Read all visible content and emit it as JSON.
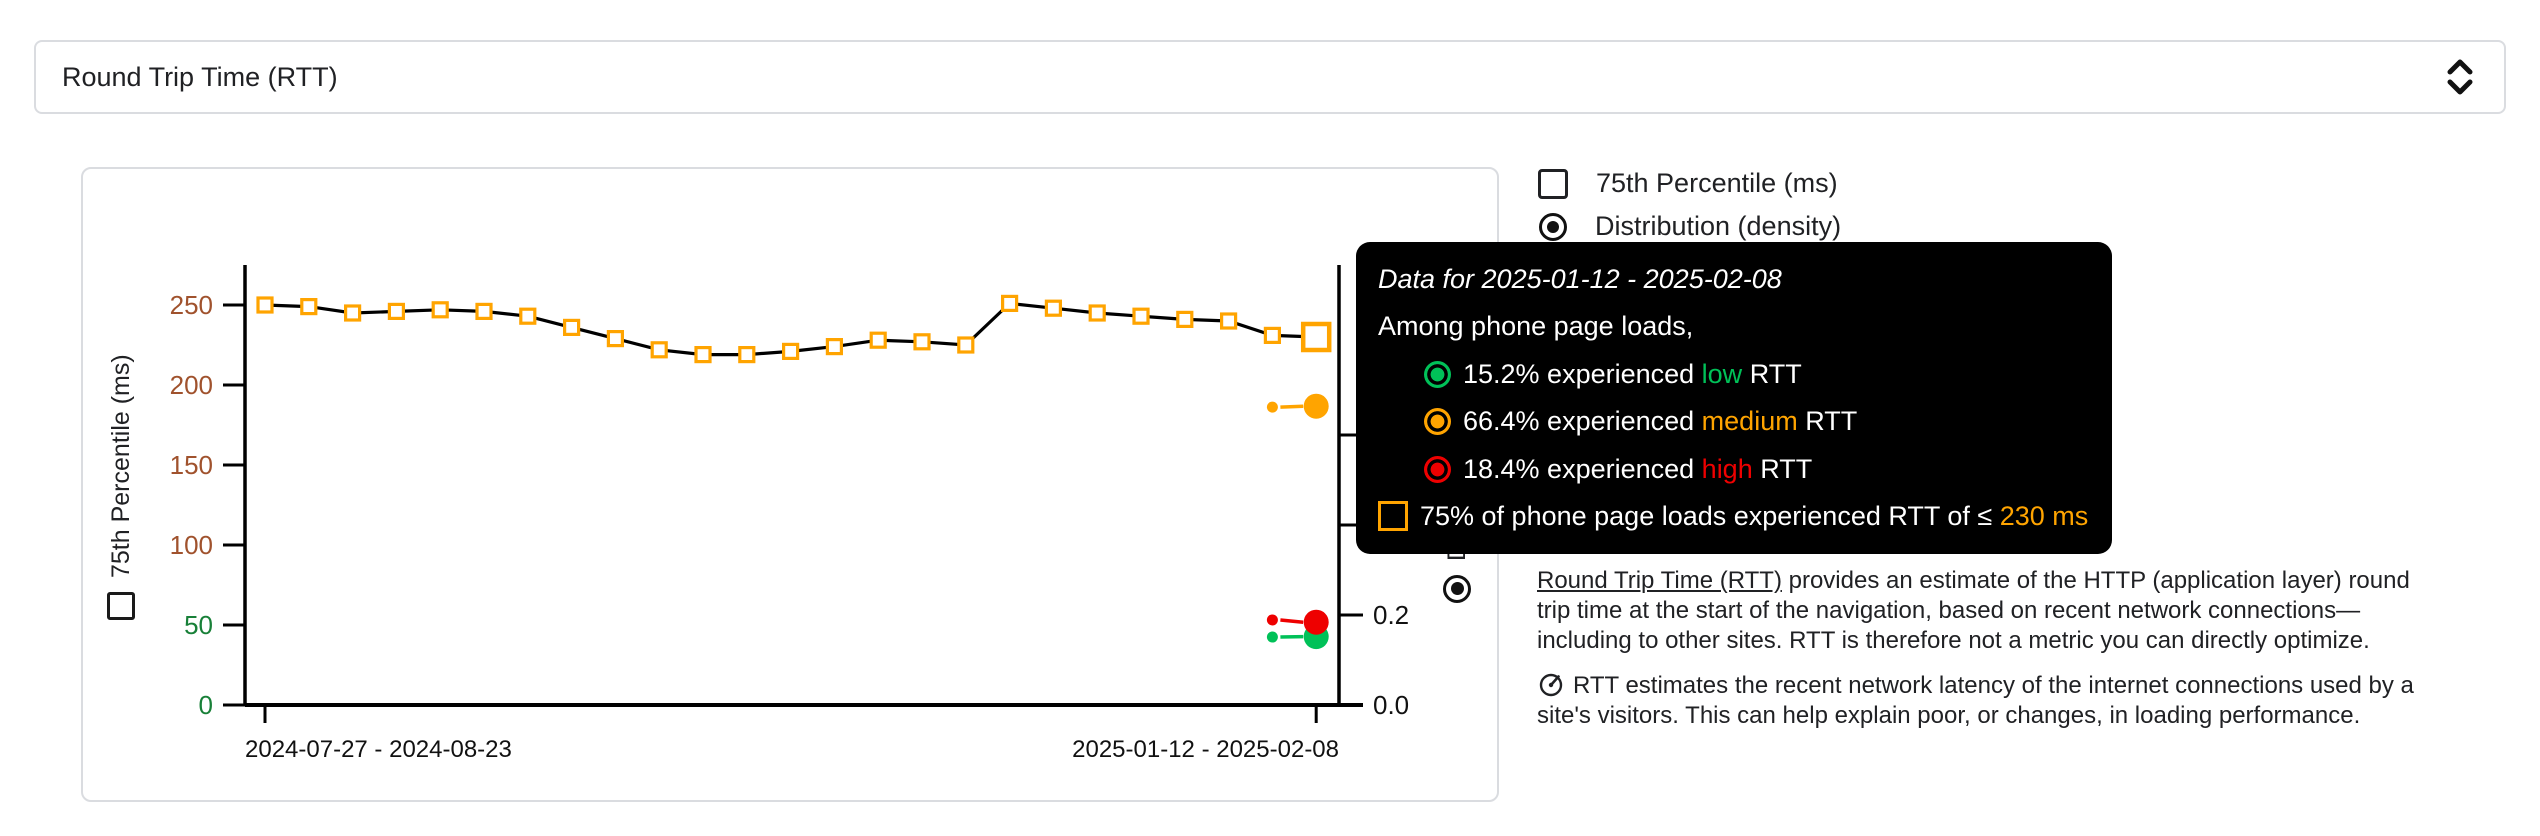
{
  "colors": {
    "orange": "#FFA400",
    "green": "#00C158",
    "red": "#EE0000",
    "tick_green": "#188038",
    "tick_brown": "#A0522D",
    "border": "#dadce0",
    "text": "#202124",
    "tooltip_bg": "#000000"
  },
  "metric_selector": {
    "label": "Round Trip Time (RTT)",
    "expander_icon": "unfold-more-chevrons"
  },
  "legend": {
    "items": [
      {
        "type": "checkbox",
        "checked": false,
        "label": "75th Percentile (ms)"
      },
      {
        "type": "radio",
        "checked": true,
        "label": "Distribution (density)"
      }
    ]
  },
  "tooltip": {
    "title": "Data for 2025-01-12 - 2025-02-08",
    "subtitle": "Among phone page loads,",
    "rows": [
      {
        "prefix": "15.2% experienced ",
        "word": "low",
        "suffix": " RTT",
        "color": "#00C158"
      },
      {
        "prefix": "66.4% experienced ",
        "word": "medium",
        "suffix": " RTT",
        "color": "#FFA400"
      },
      {
        "prefix": "18.4% experienced ",
        "word": "high",
        "suffix": " RTT",
        "color": "#EE0000"
      }
    ],
    "p75_row": {
      "prefix": "75% of phone page loads experienced RTT of ≤ ",
      "value": "230 ms",
      "value_color": "#FFA400"
    }
  },
  "chart_data": {
    "type": "line",
    "metric": "Round Trip Time (RTT)",
    "x_axis": {
      "tick_labels": [
        "2024-07-27 - 2024-08-23",
        "2025-01-12 - 2025-02-08"
      ],
      "num_points": 25
    },
    "y_left": {
      "label": "75th Percentile (ms)",
      "ticks": [
        0,
        50,
        100,
        150,
        200,
        250
      ],
      "range": [
        0,
        275
      ]
    },
    "y_right": {
      "label": "Distribution (density)",
      "ticks": [
        0.0,
        0.2,
        0.4,
        0.6
      ],
      "labels_visible": [
        "0.0",
        "0.2"
      ],
      "range": [
        0,
        0.75
      ]
    },
    "series": [
      {
        "name": "75th Percentile (ms)",
        "axis": "left",
        "marker": "square",
        "marker_color": "#FFA400",
        "line_color": "#000000",
        "values": [
          250,
          249,
          245,
          246,
          247,
          246,
          243,
          236,
          229,
          222,
          219,
          219,
          221,
          224,
          228,
          227,
          225,
          251,
          248,
          245,
          243,
          241,
          240,
          231,
          230
        ],
        "highlight_last_point": true
      },
      {
        "name": "low RTT density",
        "axis": "right",
        "marker": "circle",
        "color": "#00C158",
        "points": [
          {
            "x_index": 23,
            "value": 0.151
          },
          {
            "x_index": 24,
            "value": 0.152
          }
        ]
      },
      {
        "name": "medium RTT density",
        "axis": "right",
        "marker": "circle",
        "color": "#FFA400",
        "points": [
          {
            "x_index": 23,
            "value": 0.662
          },
          {
            "x_index": 24,
            "value": 0.664
          }
        ]
      },
      {
        "name": "high RTT density",
        "axis": "right",
        "marker": "circle",
        "color": "#EE0000",
        "points": [
          {
            "x_index": 23,
            "value": 0.189
          },
          {
            "x_index": 24,
            "value": 0.184
          }
        ]
      }
    ]
  },
  "description": {
    "link_text": "Round Trip Time (RTT)",
    "p1_rest": " provides an estimate of the HTTP (application layer) round trip time at the start of the navigation, based on recent network connections—including to other sites. RTT is therefore not a metric you can directly optimize.",
    "p2_text": "RTT estimates the recent network latency of the internet connections used by a site's visitors. This can help explain poor, or changes, in loading performance."
  }
}
